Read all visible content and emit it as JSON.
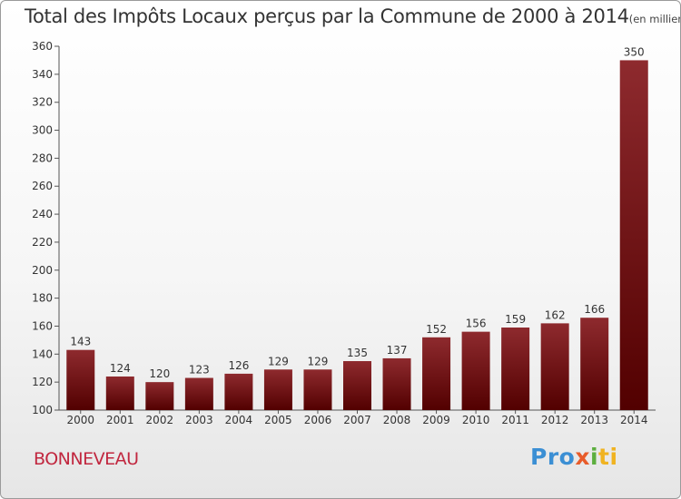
{
  "header": {
    "title": "Total des Impôts Locaux perçus par la Commune de 2000 à 2014",
    "unit": "(en milliers d'€)"
  },
  "commune": "BONNEVEAU",
  "logo": {
    "part1": "Pro",
    "part2": "x",
    "part3": "i",
    "part4": "ti"
  },
  "colors": {
    "bar_top": "#8e2a2e",
    "bar_bottom": "#520000",
    "accent": "#c1273f"
  },
  "chart_data": {
    "type": "bar",
    "title": "Total des Impôts Locaux perçus par la Commune de 2000 à 2014",
    "ylabel": "(en milliers d'€)",
    "xlabel": "",
    "categories": [
      "2000",
      "2001",
      "2002",
      "2003",
      "2004",
      "2005",
      "2006",
      "2007",
      "2008",
      "2009",
      "2010",
      "2011",
      "2012",
      "2013",
      "2014"
    ],
    "values": [
      143,
      124,
      120,
      123,
      126,
      129,
      129,
      135,
      137,
      152,
      156,
      159,
      162,
      166,
      350
    ],
    "ylim": [
      100,
      360
    ],
    "yticks": [
      100,
      120,
      140,
      160,
      180,
      200,
      220,
      240,
      260,
      280,
      300,
      320,
      340,
      360
    ],
    "grid": false
  }
}
